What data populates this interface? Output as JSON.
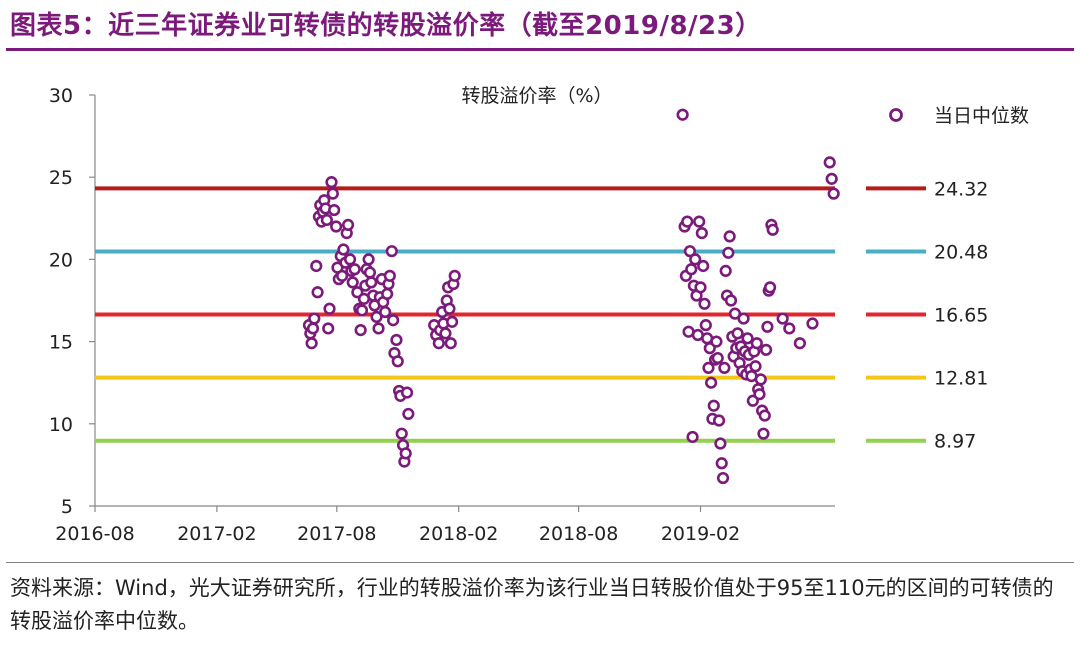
{
  "title": "图表5：近三年证券业可转债的转股溢价率（截至2019/8/23）",
  "source": "资料来源：Wind，光大证券研究所，行业的转股溢价率为该行业当日转股价值处于95至110元的区间的可转债的转股溢价率中位数。",
  "chart_data": {
    "type": "scatter",
    "title": "转股溢价率（%）",
    "xlabel": "",
    "ylabel": "",
    "xlim": [
      "2016-08-01",
      "2019-08-23"
    ],
    "ylim": [
      5,
      30
    ],
    "x_ticks": [
      "2016-08",
      "2017-02",
      "2017-08",
      "2018-02",
      "2018-08",
      "2019-02"
    ],
    "y_ticks": [
      "5",
      "10",
      "15",
      "20",
      "25",
      "30"
    ],
    "grid": false,
    "legend_position": "top-right",
    "series": [
      {
        "name": "当日中位数",
        "color": "#7b1a7b",
        "points": [
          [
            "2017-06-20",
            16.0
          ],
          [
            "2017-06-22",
            15.5
          ],
          [
            "2017-06-24",
            14.9
          ],
          [
            "2017-06-26",
            15.8
          ],
          [
            "2017-06-28",
            16.4
          ],
          [
            "2017-07-01",
            19.6
          ],
          [
            "2017-07-03",
            18.0
          ],
          [
            "2017-07-05",
            22.6
          ],
          [
            "2017-07-07",
            23.3
          ],
          [
            "2017-07-09",
            22.3
          ],
          [
            "2017-07-11",
            22.9
          ],
          [
            "2017-07-13",
            23.6
          ],
          [
            "2017-07-15",
            23.1
          ],
          [
            "2017-07-17",
            22.4
          ],
          [
            "2017-07-19",
            15.8
          ],
          [
            "2017-07-21",
            17.0
          ],
          [
            "2017-07-24",
            24.7
          ],
          [
            "2017-07-26",
            24.0
          ],
          [
            "2017-07-28",
            23.0
          ],
          [
            "2017-07-31",
            22.0
          ],
          [
            "2017-08-02",
            19.5
          ],
          [
            "2017-08-04",
            18.8
          ],
          [
            "2017-08-07",
            20.2
          ],
          [
            "2017-08-09",
            19.0
          ],
          [
            "2017-08-11",
            20.6
          ],
          [
            "2017-08-14",
            19.8
          ],
          [
            "2017-08-16",
            21.6
          ],
          [
            "2017-08-18",
            22.1
          ],
          [
            "2017-08-21",
            20.0
          ],
          [
            "2017-08-23",
            19.3
          ],
          [
            "2017-08-25",
            18.6
          ],
          [
            "2017-08-28",
            19.4
          ],
          [
            "2017-09-01",
            18.0
          ],
          [
            "2017-09-04",
            17.0
          ],
          [
            "2017-09-06",
            15.7
          ],
          [
            "2017-09-08",
            16.9
          ],
          [
            "2017-09-11",
            17.6
          ],
          [
            "2017-09-13",
            18.4
          ],
          [
            "2017-09-15",
            19.4
          ],
          [
            "2017-09-18",
            20.0
          ],
          [
            "2017-09-20",
            19.2
          ],
          [
            "2017-09-22",
            18.6
          ],
          [
            "2017-09-25",
            17.8
          ],
          [
            "2017-09-27",
            17.2
          ],
          [
            "2017-09-30",
            16.5
          ],
          [
            "2017-10-03",
            15.8
          ],
          [
            "2017-10-05",
            17.7
          ],
          [
            "2017-10-08",
            18.8
          ],
          [
            "2017-10-10",
            17.4
          ],
          [
            "2017-10-13",
            16.8
          ],
          [
            "2017-10-16",
            17.9
          ],
          [
            "2017-10-18",
            18.5
          ],
          [
            "2017-10-20",
            19.0
          ],
          [
            "2017-10-23",
            20.5
          ],
          [
            "2017-10-25",
            16.3
          ],
          [
            "2017-10-27",
            14.3
          ],
          [
            "2017-10-30",
            15.1
          ],
          [
            "2017-11-01",
            13.8
          ],
          [
            "2017-11-03",
            12.0
          ],
          [
            "2017-11-05",
            11.7
          ],
          [
            "2017-11-07",
            9.4
          ],
          [
            "2017-11-09",
            8.7
          ],
          [
            "2017-11-11",
            7.7
          ],
          [
            "2017-11-13",
            8.2
          ],
          [
            "2017-11-15",
            11.9
          ],
          [
            "2017-11-17",
            10.6
          ],
          [
            "2017-12-26",
            16.0
          ],
          [
            "2017-12-29",
            15.4
          ],
          [
            "2018-01-02",
            14.9
          ],
          [
            "2018-01-04",
            15.7
          ],
          [
            "2018-01-07",
            16.8
          ],
          [
            "2018-01-09",
            16.1
          ],
          [
            "2018-01-12",
            15.5
          ],
          [
            "2018-01-14",
            17.5
          ],
          [
            "2018-01-16",
            18.3
          ],
          [
            "2018-01-18",
            17.0
          ],
          [
            "2018-01-20",
            14.9
          ],
          [
            "2018-01-22",
            16.2
          ],
          [
            "2018-01-24",
            18.5
          ],
          [
            "2018-01-26",
            19.0
          ],
          [
            "2019-01-05",
            28.8
          ],
          [
            "2019-01-08",
            22.0
          ],
          [
            "2019-01-10",
            19.0
          ],
          [
            "2019-01-12",
            22.3
          ],
          [
            "2019-01-14",
            15.6
          ],
          [
            "2019-01-16",
            20.5
          ],
          [
            "2019-01-18",
            19.4
          ],
          [
            "2019-01-20",
            9.2
          ],
          [
            "2019-01-22",
            18.4
          ],
          [
            "2019-01-24",
            20.0
          ],
          [
            "2019-01-26",
            17.8
          ],
          [
            "2019-01-28",
            15.4
          ],
          [
            "2019-01-30",
            22.3
          ],
          [
            "2019-02-01",
            18.3
          ],
          [
            "2019-02-03",
            21.6
          ],
          [
            "2019-02-05",
            19.6
          ],
          [
            "2019-02-07",
            17.3
          ],
          [
            "2019-02-09",
            16.0
          ],
          [
            "2019-02-11",
            15.2
          ],
          [
            "2019-02-13",
            13.4
          ],
          [
            "2019-02-15",
            14.6
          ],
          [
            "2019-02-17",
            12.5
          ],
          [
            "2019-02-19",
            10.3
          ],
          [
            "2019-02-21",
            11.1
          ],
          [
            "2019-02-23",
            13.9
          ],
          [
            "2019-02-25",
            15.0
          ],
          [
            "2019-02-27",
            14.0
          ],
          [
            "2019-03-01",
            10.2
          ],
          [
            "2019-03-03",
            8.8
          ],
          [
            "2019-03-05",
            7.6
          ],
          [
            "2019-03-07",
            6.7
          ],
          [
            "2019-03-09",
            13.4
          ],
          [
            "2019-03-11",
            19.3
          ],
          [
            "2019-03-13",
            17.8
          ],
          [
            "2019-03-15",
            20.4
          ],
          [
            "2019-03-17",
            21.4
          ],
          [
            "2019-03-19",
            17.5
          ],
          [
            "2019-03-21",
            15.3
          ],
          [
            "2019-03-23",
            14.1
          ],
          [
            "2019-03-25",
            16.7
          ],
          [
            "2019-03-27",
            14.6
          ],
          [
            "2019-03-29",
            15.5
          ],
          [
            "2019-04-01",
            13.7
          ],
          [
            "2019-04-03",
            14.7
          ],
          [
            "2019-04-05",
            13.2
          ],
          [
            "2019-04-07",
            16.4
          ],
          [
            "2019-04-09",
            14.4
          ],
          [
            "2019-04-11",
            13.0
          ],
          [
            "2019-04-13",
            15.2
          ],
          [
            "2019-04-15",
            14.2
          ],
          [
            "2019-04-17",
            13.3
          ],
          [
            "2019-04-19",
            12.9
          ],
          [
            "2019-04-21",
            11.4
          ],
          [
            "2019-04-23",
            14.4
          ],
          [
            "2019-04-25",
            13.5
          ],
          [
            "2019-04-27",
            14.9
          ],
          [
            "2019-04-29",
            12.1
          ],
          [
            "2019-05-01",
            11.8
          ],
          [
            "2019-05-03",
            12.7
          ],
          [
            "2019-05-05",
            10.8
          ],
          [
            "2019-05-07",
            9.4
          ],
          [
            "2019-05-09",
            10.5
          ],
          [
            "2019-05-11",
            14.5
          ],
          [
            "2019-05-13",
            15.9
          ],
          [
            "2019-05-15",
            18.1
          ],
          [
            "2019-05-17",
            18.3
          ],
          [
            "2019-05-19",
            22.1
          ],
          [
            "2019-05-21",
            21.8
          ],
          [
            "2019-06-05",
            16.4
          ],
          [
            "2019-06-15",
            15.8
          ],
          [
            "2019-07-01",
            14.9
          ],
          [
            "2019-07-20",
            16.1
          ],
          [
            "2019-08-15",
            25.9
          ],
          [
            "2019-08-18",
            24.9
          ],
          [
            "2019-08-21",
            24.0
          ]
        ]
      }
    ],
    "reference_lines": [
      {
        "value": 24.32,
        "label": "24.32",
        "color": "#b51c1c"
      },
      {
        "value": 20.48,
        "label": "20.48",
        "color": "#4bacc6"
      },
      {
        "value": 16.65,
        "label": "16.65",
        "color": "#e1262d"
      },
      {
        "value": 12.81,
        "label": "12.81",
        "color": "#f5c518"
      },
      {
        "value": 8.97,
        "label": "8.97",
        "color": "#92d050"
      }
    ]
  }
}
